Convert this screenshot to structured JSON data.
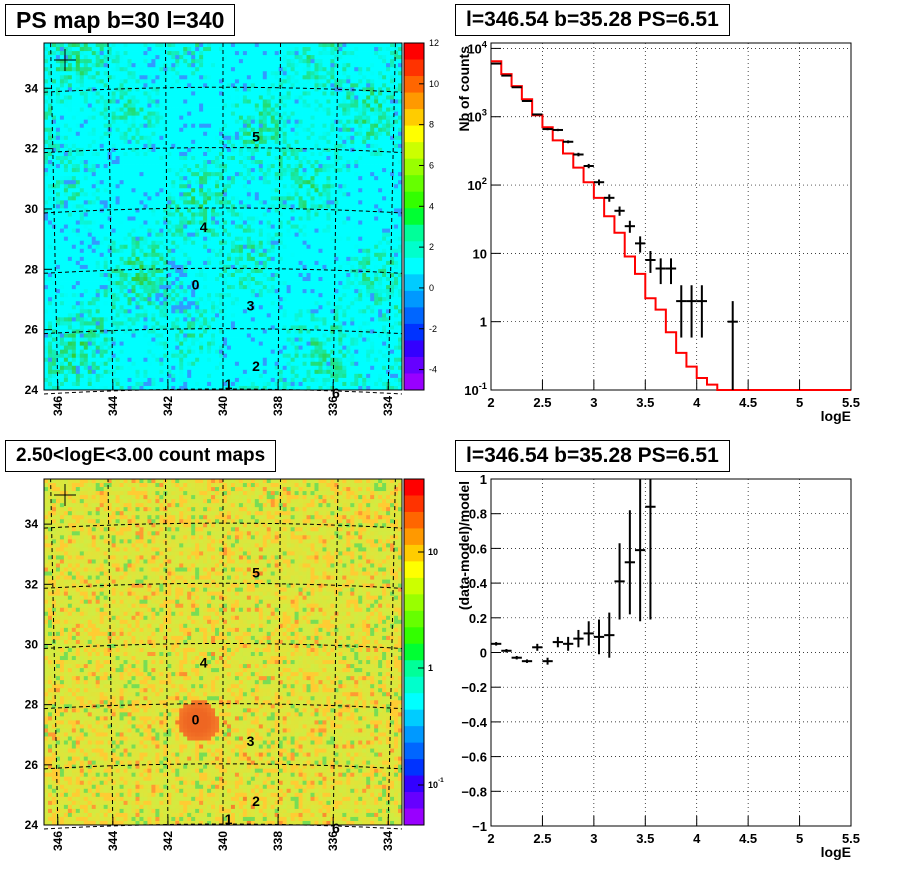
{
  "panels": {
    "ps_map": {
      "title": "PS map b=30 l=340",
      "colorbar_ticks": [
        "12",
        "10",
        "8",
        "6",
        "4",
        "2",
        "0",
        "-2",
        "-4"
      ],
      "y_ticks": [
        "34",
        "32",
        "30",
        "28",
        "26",
        "24"
      ],
      "x_ticks": [
        "346",
        "344",
        "342",
        "340",
        "338",
        "336",
        "334"
      ],
      "source_labels": [
        "0",
        "1",
        "2",
        "3",
        "4",
        "5",
        "6"
      ]
    },
    "spectrum": {
      "title": "l=346.54 b=35.28 PS=6.51",
      "ylabel": "Nb of counts",
      "xlabel": "logE",
      "x_ticks": [
        "2",
        "2.5",
        "3",
        "3.5",
        "4",
        "4.5",
        "5",
        "5.5"
      ],
      "y_ticks": [
        "10^4",
        "10^3",
        "10^2",
        "10",
        "1",
        "10^-1"
      ]
    },
    "count_map": {
      "title": "2.50<logE<3.00 count maps",
      "colorbar_ticks": [
        "10",
        "1",
        "10^-1"
      ],
      "y_ticks": [
        "34",
        "32",
        "30",
        "28",
        "26",
        "24"
      ],
      "x_ticks": [
        "346",
        "344",
        "342",
        "340",
        "338",
        "336",
        "334"
      ],
      "source_labels": [
        "0",
        "1",
        "2",
        "3",
        "4",
        "5",
        "6"
      ]
    },
    "residual": {
      "title": "l=346.54 b=35.28 PS=6.51",
      "ylabel": "(data-model)/model",
      "xlabel": "logE",
      "x_ticks": [
        "2",
        "2.5",
        "3",
        "3.5",
        "4",
        "4.5",
        "5",
        "5.5"
      ],
      "y_ticks": [
        "1",
        "0.8",
        "0.6",
        "0.4",
        "0.2",
        "0",
        "−0.2",
        "−0.4",
        "−0.6",
        "−0.8",
        "−1"
      ]
    }
  },
  "chart_data": [
    {
      "type": "heatmap",
      "title": "PS map b=30 l=340",
      "xlim": [
        346.5,
        333.5
      ],
      "ylim": [
        24,
        35.5
      ],
      "zlim": [
        -5,
        12
      ],
      "colors": {
        "base": "#00ffff",
        "high": "#33cc33",
        "low": "#3399ff"
      },
      "sources": [
        {
          "label": "0",
          "l": 341.0,
          "b": 27.5
        },
        {
          "label": "1",
          "l": 339.8,
          "b": 24.2
        },
        {
          "label": "2",
          "l": 338.8,
          "b": 24.8
        },
        {
          "label": "3",
          "l": 339.0,
          "b": 26.8
        },
        {
          "label": "4",
          "l": 340.7,
          "b": 29.4
        },
        {
          "label": "5",
          "l": 338.8,
          "b": 32.4
        },
        {
          "label": "6",
          "l": 335.9,
          "b": 23.9
        }
      ]
    },
    {
      "type": "line",
      "title": "l=346.54 b=35.28 PS=6.51",
      "xlabel": "logE",
      "ylabel": "Nb of counts",
      "xlim": [
        2,
        5.5
      ],
      "ylim": [
        0.1,
        12000
      ],
      "yscale": "log",
      "series": [
        {
          "values_x": [
            2.05,
            2.15,
            2.25,
            2.35,
            2.45,
            2.55,
            2.65,
            2.75,
            2.85,
            2.95,
            3.05,
            3.15,
            3.25,
            3.35,
            3.45,
            3.55,
            3.65,
            3.75,
            3.85,
            3.95,
            4.05,
            4.15,
            4.25,
            4.35,
            4.45,
            4.55,
            4.65,
            4.75,
            4.85,
            4.95,
            5.05,
            5.15,
            5.25,
            5.35,
            5.45
          ],
          "values_y": [
            6500,
            4200,
            2800,
            1800,
            1050,
            700,
            450,
            290,
            180,
            110,
            65,
            35,
            20,
            9,
            5,
            2.2,
            1.5,
            0.7,
            0.35,
            0.22,
            0.15,
            0.12,
            0.1,
            0.1,
            0.1,
            0.1,
            0.1,
            0.1,
            0.1,
            0.1,
            0.1,
            0.1,
            0.1,
            0.1,
            0.1
          ],
          "color": "#ff0000"
        },
        {
          "points": [
            {
              "x": 2.05,
              "y": 6000,
              "dx": 0.05
            },
            {
              "x": 2.15,
              "y": 4000,
              "dx": 0.05
            },
            {
              "x": 2.25,
              "y": 2700,
              "dx": 0.05
            },
            {
              "x": 2.35,
              "y": 1700,
              "dx": 0.05
            },
            {
              "x": 2.45,
              "y": 1080,
              "dx": 0.05
            },
            {
              "x": 2.55,
              "y": 660,
              "dx": 0.05
            },
            {
              "x": 2.65,
              "y": 640,
              "dx": 0.05
            },
            {
              "x": 2.75,
              "y": 430,
              "dx": 0.05
            },
            {
              "x": 2.85,
              "y": 280,
              "dx": 0.05
            },
            {
              "x": 2.95,
              "y": 190,
              "dx": 0.05
            },
            {
              "x": 3.05,
              "y": 110,
              "dx": 0.05
            },
            {
              "x": 3.15,
              "y": 65,
              "dx": 0.05
            },
            {
              "x": 3.25,
              "y": 42,
              "dx": 0.05
            },
            {
              "x": 3.35,
              "y": 25,
              "dx": 0.05
            },
            {
              "x": 3.45,
              "y": 14,
              "dx": 0.05
            },
            {
              "x": 3.55,
              "y": 8,
              "dx": 0.05
            },
            {
              "x": 3.65,
              "y": 6,
              "dx": 0.05
            },
            {
              "x": 3.75,
              "y": 6,
              "dx": 0.05
            },
            {
              "x": 3.85,
              "y": 2,
              "dx": 0.05
            },
            {
              "x": 3.95,
              "y": 2,
              "dx": 0.05
            },
            {
              "x": 4.05,
              "y": 2,
              "dx": 0.05
            },
            {
              "x": 4.35,
              "y": 1,
              "dx": 0.05
            }
          ]
        }
      ]
    },
    {
      "type": "heatmap",
      "title": "2.50<logE<3.00 count maps",
      "xlim": [
        346.5,
        333.5
      ],
      "ylim": [
        24,
        35.5
      ],
      "zscale": "log",
      "colors": {
        "base": "#ccee44",
        "high": "#ee6622",
        "low": "#77dd55"
      },
      "sources": [
        {
          "label": "0",
          "l": 341.0,
          "b": 27.5
        },
        {
          "label": "1",
          "l": 339.8,
          "b": 24.2
        },
        {
          "label": "2",
          "l": 338.8,
          "b": 24.8
        },
        {
          "label": "3",
          "l": 339.0,
          "b": 26.8
        },
        {
          "label": "4",
          "l": 340.7,
          "b": 29.4
        },
        {
          "label": "5",
          "l": 338.8,
          "b": 32.4
        },
        {
          "label": "6",
          "l": 335.9,
          "b": 23.9
        }
      ]
    },
    {
      "type": "scatter",
      "title": "l=346.54 b=35.28 PS=6.51",
      "xlabel": "logE",
      "ylabel": "(data-model)/model",
      "xlim": [
        2,
        5.5
      ],
      "ylim": [
        -1,
        1
      ],
      "points": [
        {
          "x": 2.05,
          "y": 0.05,
          "ylo": 0.04,
          "yhi": 0.06
        },
        {
          "x": 2.15,
          "y": 0.01,
          "ylo": 0.0,
          "yhi": 0.02
        },
        {
          "x": 2.25,
          "y": -0.03,
          "ylo": -0.04,
          "yhi": -0.02
        },
        {
          "x": 2.35,
          "y": -0.05,
          "ylo": -0.06,
          "yhi": -0.04
        },
        {
          "x": 2.45,
          "y": 0.03,
          "ylo": 0.01,
          "yhi": 0.05
        },
        {
          "x": 2.55,
          "y": -0.05,
          "ylo": -0.07,
          "yhi": -0.03
        },
        {
          "x": 2.65,
          "y": 0.06,
          "ylo": 0.03,
          "yhi": 0.09
        },
        {
          "x": 2.75,
          "y": 0.05,
          "ylo": 0.01,
          "yhi": 0.09
        },
        {
          "x": 2.85,
          "y": 0.08,
          "ylo": 0.03,
          "yhi": 0.13
        },
        {
          "x": 2.95,
          "y": 0.11,
          "ylo": 0.04,
          "yhi": 0.18
        },
        {
          "x": 3.05,
          "y": 0.09,
          "ylo": -0.01,
          "yhi": 0.19
        },
        {
          "x": 3.15,
          "y": 0.1,
          "ylo": -0.03,
          "yhi": 0.23
        },
        {
          "x": 3.25,
          "y": 0.41,
          "ylo": 0.19,
          "yhi": 0.63
        },
        {
          "x": 3.35,
          "y": 0.52,
          "ylo": 0.22,
          "yhi": 0.82
        },
        {
          "x": 3.45,
          "y": 0.59,
          "ylo": 0.18,
          "yhi": 1.0
        },
        {
          "x": 3.55,
          "y": 0.84,
          "ylo": 0.19,
          "yhi": 1.0
        }
      ]
    }
  ]
}
